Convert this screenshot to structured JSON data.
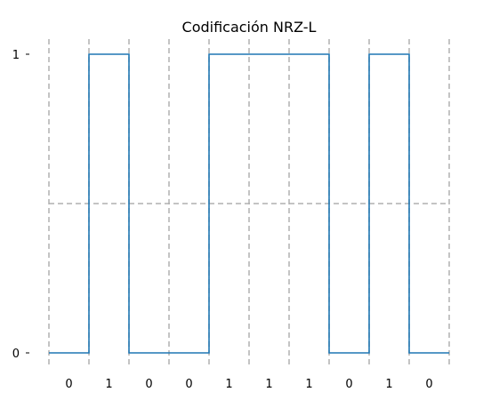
{
  "chart_data": {
    "type": "line",
    "step": true,
    "title": "Codificación NRZ-L",
    "xlabel": "",
    "ylabel": "",
    "bits": [
      0,
      1,
      0,
      0,
      1,
      1,
      1,
      0,
      1,
      0
    ],
    "x_tick_labels": [
      "0",
      "1",
      "0",
      "0",
      "1",
      "1",
      "1",
      "0",
      "1",
      "0"
    ],
    "y_ticks": [
      0,
      1
    ],
    "y_tick_labels": [
      "0",
      "1"
    ],
    "xlim": [
      0,
      10
    ],
    "ylim": [
      0,
      1
    ],
    "midline": 0.5,
    "bit_boundaries": [
      0,
      1,
      2,
      3,
      4,
      5,
      6,
      7,
      8,
      9,
      10
    ],
    "grid": "dashed vertical lines at bit boundaries and dashed horizontal line at 0.5",
    "colors": {
      "signal": "#1f77b4",
      "guide_lines": "#b0b0b0",
      "text": "#000000"
    }
  }
}
